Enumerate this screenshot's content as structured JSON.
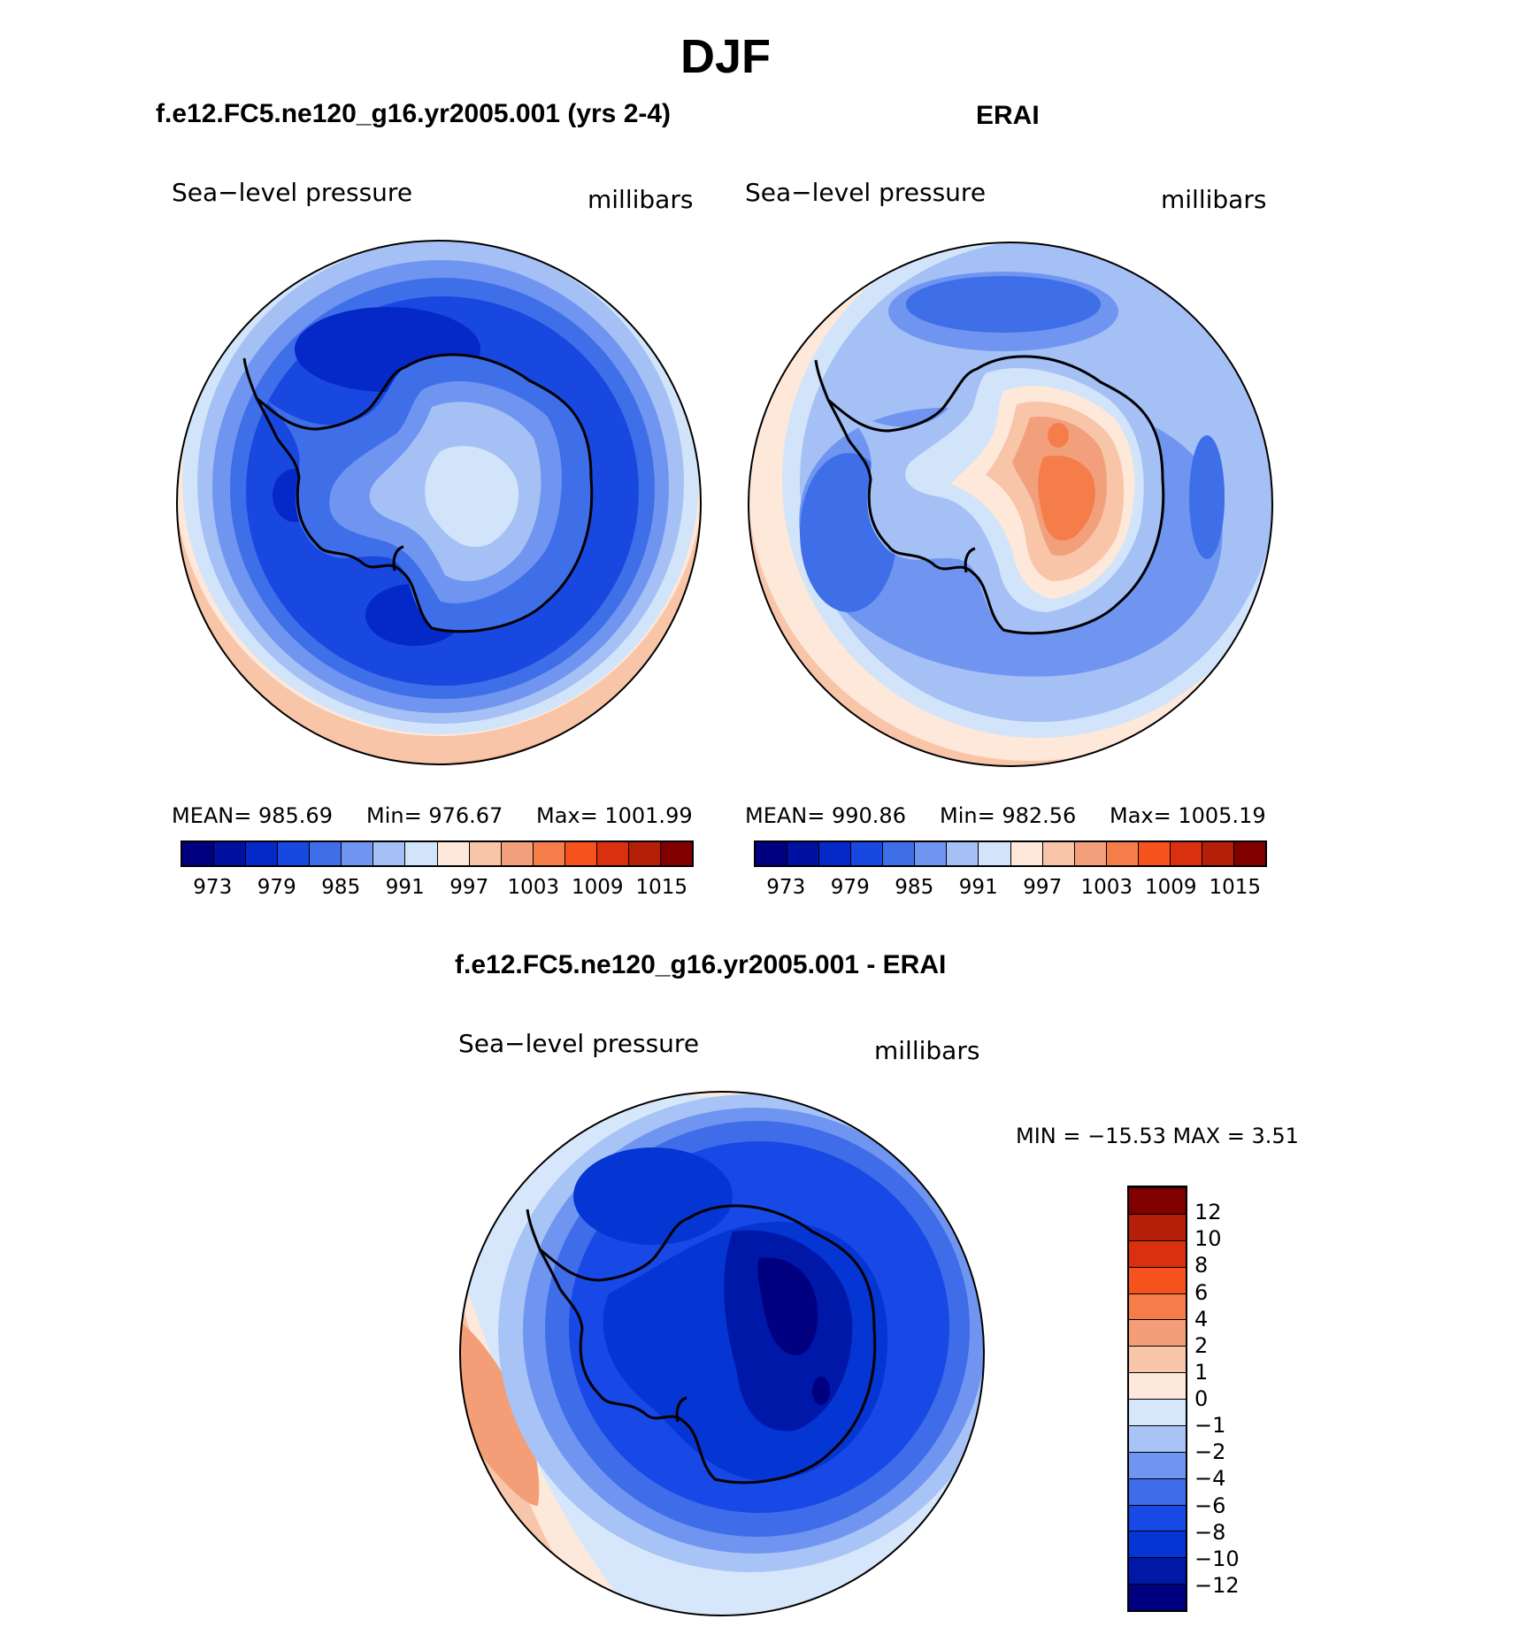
{
  "title": "DJF",
  "panels": {
    "model": {
      "title": "f.e12.FC5.ne120_g16.yr2005.001 (yrs 2-4)",
      "variable": "Sea−level pressure",
      "units": "millibars",
      "stats": {
        "mean": "MEAN=  985.69",
        "min": "Min=  976.67",
        "max": "Max=  1001.99"
      },
      "legend": "a"
    },
    "obs": {
      "title": "ERAI",
      "variable": "Sea−level pressure",
      "units": "millibars",
      "stats": {
        "mean": "MEAN=  990.86",
        "min": "Min=  982.56",
        "max": "Max=  1005.19"
      },
      "legend": "a"
    },
    "diff": {
      "title": "f.e12.FC5.ne120_g16.yr2005.001 - ERAI",
      "variable": "Sea−level pressure",
      "units": "millibars",
      "minmax": "MIN  =  −15.53  MAX  =      3.51"
    }
  },
  "colorbar_abs": {
    "colors": [
      "#000080",
      "#0010a0",
      "#0528c8",
      "#1848e0",
      "#3e6ee8",
      "#6f95f0",
      "#a5c0f5",
      "#d2e4fa",
      "#fde8d9",
      "#f8c5a9",
      "#f2a07c",
      "#f57d4a",
      "#f5521e",
      "#d93010",
      "#b51e08",
      "#800000"
    ],
    "tick_labels": [
      "973",
      "979",
      "985",
      "991",
      "997",
      "1003",
      "1009",
      "1015"
    ],
    "tick_boundaries": [
      1,
      3,
      5,
      7,
      9,
      11,
      13,
      15
    ]
  },
  "colorbar_diff": {
    "colors": [
      "#000080",
      "#0018a8",
      "#0535d2",
      "#1848e5",
      "#3f6ce8",
      "#6f95f0",
      "#a8c3f6",
      "#d6e7fb",
      "#fde9dc",
      "#f8c6aa",
      "#f49e77",
      "#f57d4a",
      "#f5521e",
      "#d93010",
      "#b51e08",
      "#800000"
    ],
    "tick_labels": [
      "−12",
      "−10",
      "−8",
      "−6",
      "−4",
      "−2",
      "−1",
      "0",
      "1",
      "2",
      "4",
      "6",
      "8",
      "10",
      "12"
    ]
  },
  "map": {
    "projection": "south polar stereographic",
    "model_field": "low pressure ring ~976-985 mb around Antarctica, ~991-997 mb over the continent interior",
    "obs_field": "982-991 mb ring, high pressure ~1003-1009 mb over East Antarctica",
    "diff_field": "negative anomalies down to about -12 mb over East Antarctica, positive 1-4 mb in the outer South Pacific sector"
  }
}
